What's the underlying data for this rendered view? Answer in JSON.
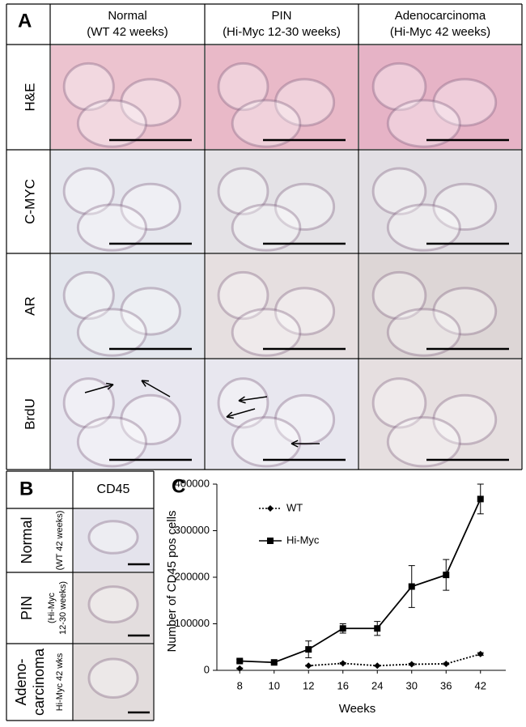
{
  "panel_a": {
    "label": "A",
    "columns": [
      [
        "Normal",
        "(WT 42 weeks)"
      ],
      [
        "PIN",
        "(Hi-Myc 12-30 weeks)"
      ],
      [
        "Adenocarcinoma",
        "(Hi-Myc 42 weeks)"
      ]
    ],
    "rows": [
      "H&E",
      "C-MYC",
      "AR",
      "BrdU"
    ]
  },
  "panel_b": {
    "label": "B",
    "column": "CD45",
    "rows": [
      {
        "name": [
          "Normal"
        ],
        "detail": [
          "(WT 42 weeks)"
        ]
      },
      {
        "name": [
          "PIN"
        ],
        "detail": [
          "(Hi-Myc",
          "12-30 weeks)"
        ]
      },
      {
        "name": [
          "Adeno-",
          "carcinoma"
        ],
        "detail": [
          "Hi-Myc  42 wks"
        ]
      }
    ]
  },
  "panel_c": {
    "label": "C"
  },
  "chart_data": {
    "type": "line",
    "x_label": "Weeks",
    "y_label": "Number of CD45 pos cells",
    "categories": [
      "8",
      "10",
      "12",
      "16",
      "24",
      "30",
      "36",
      "42"
    ],
    "series": [
      {
        "name": "WT",
        "color": "#000000",
        "linestyle": "dotted",
        "marker": "diamond",
        "values": [
          4000,
          null,
          10000,
          15000,
          10000,
          13000,
          14000,
          35000
        ],
        "errors": [
          1000,
          null,
          1000,
          1500,
          1000,
          2000,
          1500,
          3000
        ]
      },
      {
        "name": "Hi-Myc",
        "color": "#000000",
        "linestyle": "solid",
        "marker": "square",
        "values": [
          20000,
          17000,
          45000,
          90000,
          90000,
          180000,
          205000,
          368000
        ],
        "errors": [
          3000,
          2000,
          18000,
          10000,
          15000,
          45000,
          33000,
          32000
        ]
      }
    ],
    "ylim": [
      0,
      400000
    ],
    "yticks": [
      0,
      100000,
      200000,
      300000,
      400000
    ],
    "grid": false,
    "legend": "upper left"
  }
}
